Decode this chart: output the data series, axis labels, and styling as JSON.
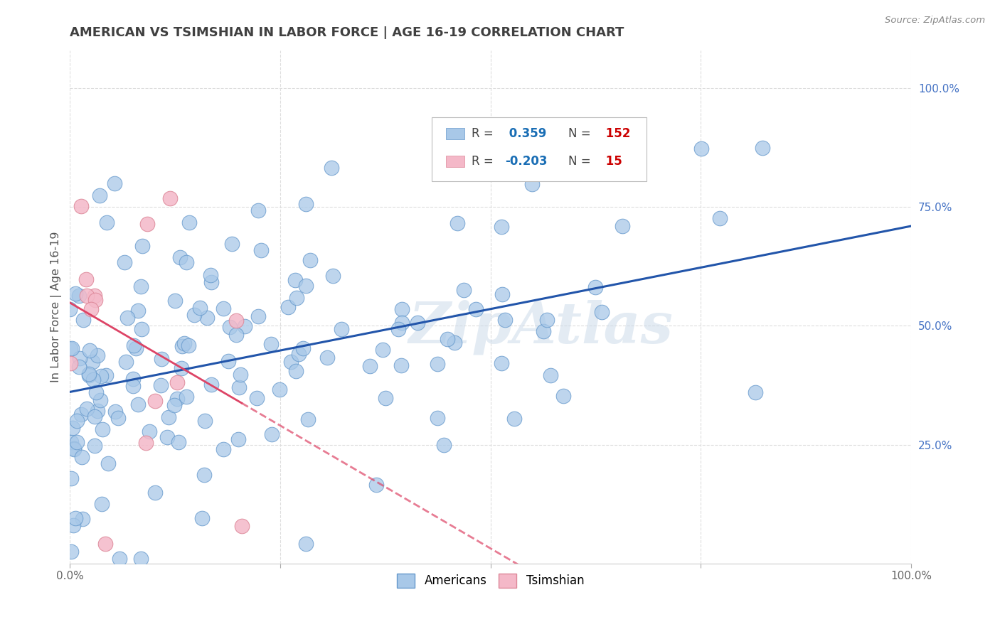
{
  "title": "AMERICAN VS TSIMSHIAN IN LABOR FORCE | AGE 16-19 CORRELATION CHART",
  "source_text": "Source: ZipAtlas.com",
  "ylabel": "In Labor Force | Age 16-19",
  "watermark": "ZipAtlas",
  "american_color": "#a8c8e8",
  "american_edge_color": "#6699cc",
  "tsimshian_color": "#f4b8c8",
  "tsimshian_edge_color": "#dd8899",
  "american_R": 0.359,
  "american_N": 152,
  "tsimshian_R": -0.203,
  "tsimshian_N": 15,
  "title_color": "#404040",
  "title_fontsize": 13,
  "background_color": "#ffffff",
  "grid_color": "#dddddd",
  "legend_R_color": "#1a6eb5",
  "legend_N_color": "#cc0000",
  "american_trend_color": "#2255aa",
  "tsimshian_trend_color": "#dd4466",
  "seed": 42
}
